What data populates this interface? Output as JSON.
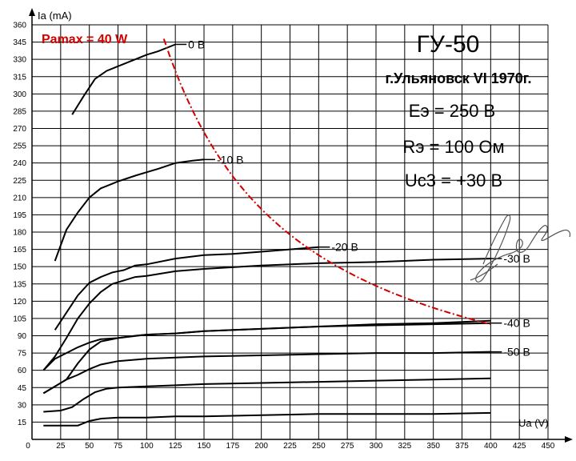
{
  "chart_data": {
    "type": "line",
    "title": "ГУ-50",
    "subtitle": "г.Ульяновск VI 1970г.",
    "annotations": [
      "Eэ = 250 В",
      "Rэ = 100 Ом",
      "Uc3 = +30 В"
    ],
    "xlabel": "Ua (V)",
    "ylabel": "Ia (mA)",
    "xlim": [
      0,
      450
    ],
    "ylim": [
      0,
      360
    ],
    "x_ticks": [
      "0",
      "25",
      "50",
      "75",
      "100",
      "125",
      "150",
      "175",
      "200",
      "225",
      "250",
      "275",
      "300",
      "325",
      "350",
      "375",
      "400",
      "425",
      "450"
    ],
    "y_ticks": [
      "15",
      "30",
      "45",
      "60",
      "75",
      "90",
      "105",
      "120",
      "135",
      "150",
      "165",
      "180",
      "195",
      "210",
      "225",
      "240",
      "255",
      "270",
      "285",
      "300",
      "315",
      "330",
      "345",
      "360"
    ],
    "grid": true,
    "series": [
      {
        "name": "0 В",
        "x": [
          35,
          45,
          55,
          65,
          75,
          90,
          100,
          110,
          125
        ],
        "y": [
          282,
          298,
          313,
          320,
          324,
          330,
          334,
          337,
          343
        ]
      },
      {
        "name": "-10 В",
        "x": [
          20,
          30,
          40,
          50,
          60,
          75,
          90,
          100,
          110,
          125,
          140,
          150
        ],
        "y": [
          155,
          182,
          197,
          210,
          218,
          224,
          229,
          232,
          235,
          240,
          242,
          243
        ]
      },
      {
        "name": "-20 В",
        "x": [
          20,
          30,
          40,
          50,
          60,
          70,
          80,
          90,
          100,
          125,
          150,
          175,
          200,
          225,
          250
        ],
        "y": [
          95,
          110,
          125,
          136,
          141,
          145,
          147,
          151,
          152,
          157,
          160,
          161,
          163,
          165,
          167
        ]
      },
      {
        "name": "-30 В",
        "x": [
          10,
          20,
          30,
          40,
          50,
          60,
          70,
          80,
          90,
          100,
          125,
          150,
          200,
          250,
          300,
          350,
          400
        ],
        "y": [
          60,
          72,
          88,
          105,
          118,
          128,
          135,
          138,
          141,
          142,
          146,
          148,
          151,
          153,
          154,
          156,
          157
        ]
      },
      {
        "name": "-40 В",
        "x": [
          10,
          20,
          30,
          40,
          50,
          60,
          75,
          90,
          100,
          125,
          150,
          200,
          250,
          300,
          350,
          400
        ],
        "y": [
          60,
          70,
          75,
          80,
          84,
          87,
          88,
          90,
          91,
          92,
          94,
          96,
          98,
          99,
          100,
          101
        ]
      },
      {
        "name": "-50 В",
        "x": [
          10,
          20,
          30,
          40,
          50,
          60,
          75,
          100,
          125,
          150,
          200,
          250,
          300,
          350,
          400
        ],
        "y": [
          40,
          46,
          52,
          56,
          61,
          65,
          68,
          70,
          71,
          72,
          73,
          74,
          75,
          75,
          76
        ]
      }
    ],
    "low_curves": [
      {
        "name": "-50 В",
        "x": [
          10,
          20,
          30,
          40,
          50,
          60,
          75,
          100,
          125,
          150,
          200,
          250,
          300,
          350,
          400
        ],
        "y": [
          12,
          12,
          12,
          12,
          16,
          18,
          19,
          19,
          20,
          20,
          21,
          22,
          22,
          22,
          23
        ]
      },
      {
        "name": "-40 В",
        "x": [
          10,
          25,
          35,
          45,
          55,
          65,
          75,
          100,
          125,
          150,
          200,
          250,
          300,
          350,
          400
        ],
        "y": [
          24,
          25,
          28,
          35,
          41,
          44,
          45,
          46,
          47,
          48,
          49,
          50,
          51,
          52,
          53
        ]
      },
      {
        "name": "-30 В",
        "x": [
          10,
          20,
          30,
          40,
          50,
          60,
          75,
          100,
          125,
          150,
          200,
          250,
          300,
          350,
          400
        ],
        "y": [
          40,
          46,
          52,
          66,
          78,
          85,
          88,
          91,
          92,
          94,
          96,
          98,
          100,
          101,
          103
        ]
      }
    ],
    "pmax_curve": {
      "label": "Pamax = 40 W",
      "color": "#d40000",
      "power_w": 40,
      "x_range": [
        115,
        400
      ]
    },
    "signature": "handwritten signature"
  }
}
